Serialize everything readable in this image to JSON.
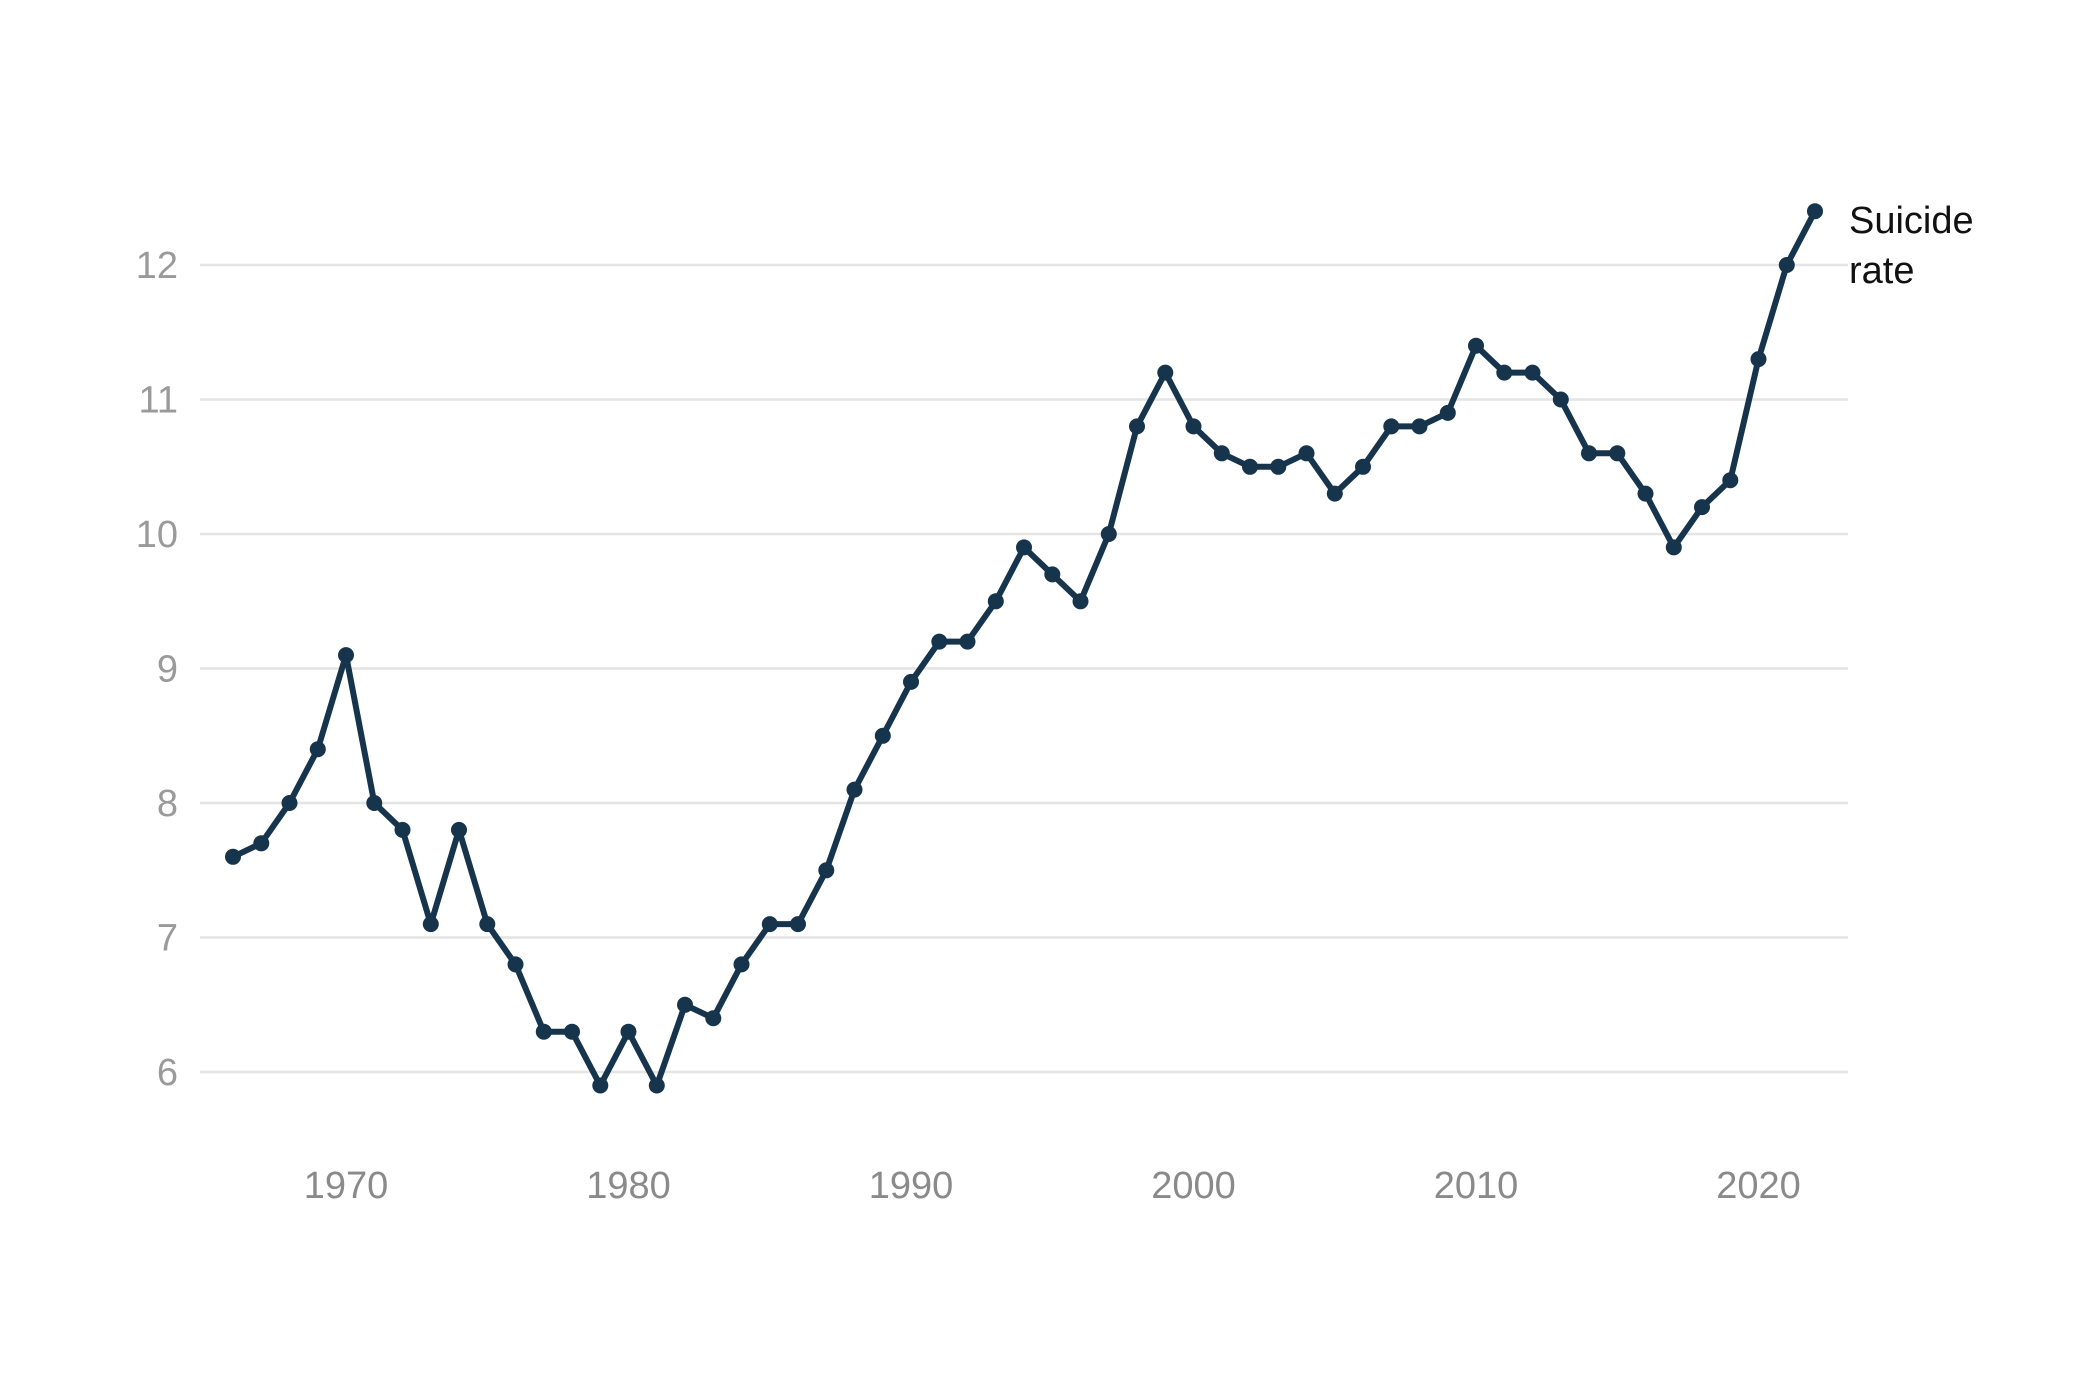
{
  "chart_data": {
    "type": "line",
    "title": "",
    "xlabel": "",
    "ylabel": "",
    "xlim": [
      1965,
      2023
    ],
    "ylim": [
      5.5,
      12.6
    ],
    "xticks": [
      1970,
      1980,
      1990,
      2000,
      2010,
      2020
    ],
    "yticks": [
      6,
      7,
      8,
      9,
      10,
      11,
      12
    ],
    "grid": "horizontal",
    "legend": "direct label at line end",
    "series": [
      {
        "name": "Suicide rate",
        "label_lines": [
          "Suicide",
          "rate"
        ],
        "color": "#17344d",
        "x": [
          1966,
          1967,
          1968,
          1969,
          1970,
          1971,
          1972,
          1973,
          1974,
          1975,
          1976,
          1977,
          1978,
          1979,
          1980,
          1981,
          1982,
          1983,
          1984,
          1985,
          1986,
          1987,
          1988,
          1989,
          1990,
          1991,
          1992,
          1993,
          1994,
          1995,
          1996,
          1997,
          1998,
          1999,
          2000,
          2001,
          2002,
          2003,
          2004,
          2005,
          2006,
          2007,
          2008,
          2009,
          2010,
          2011,
          2012,
          2013,
          2014,
          2015,
          2016,
          2017,
          2018,
          2019,
          2020,
          2021,
          2022
        ],
        "values": [
          7.6,
          7.7,
          8.0,
          8.4,
          9.1,
          8.0,
          7.8,
          7.1,
          7.8,
          7.1,
          6.8,
          6.3,
          6.3,
          5.9,
          6.3,
          5.9,
          6.5,
          6.4,
          6.8,
          7.1,
          7.1,
          7.5,
          8.1,
          8.5,
          8.9,
          9.2,
          9.2,
          9.5,
          9.9,
          9.7,
          9.5,
          10.0,
          10.8,
          11.2,
          10.8,
          10.6,
          10.5,
          10.5,
          10.6,
          10.3,
          10.5,
          10.8,
          10.8,
          10.9,
          11.4,
          11.2,
          11.2,
          11.0,
          10.6,
          10.6,
          10.3,
          9.9,
          10.2,
          10.4,
          11.3,
          12.0,
          12.4
        ]
      }
    ]
  }
}
